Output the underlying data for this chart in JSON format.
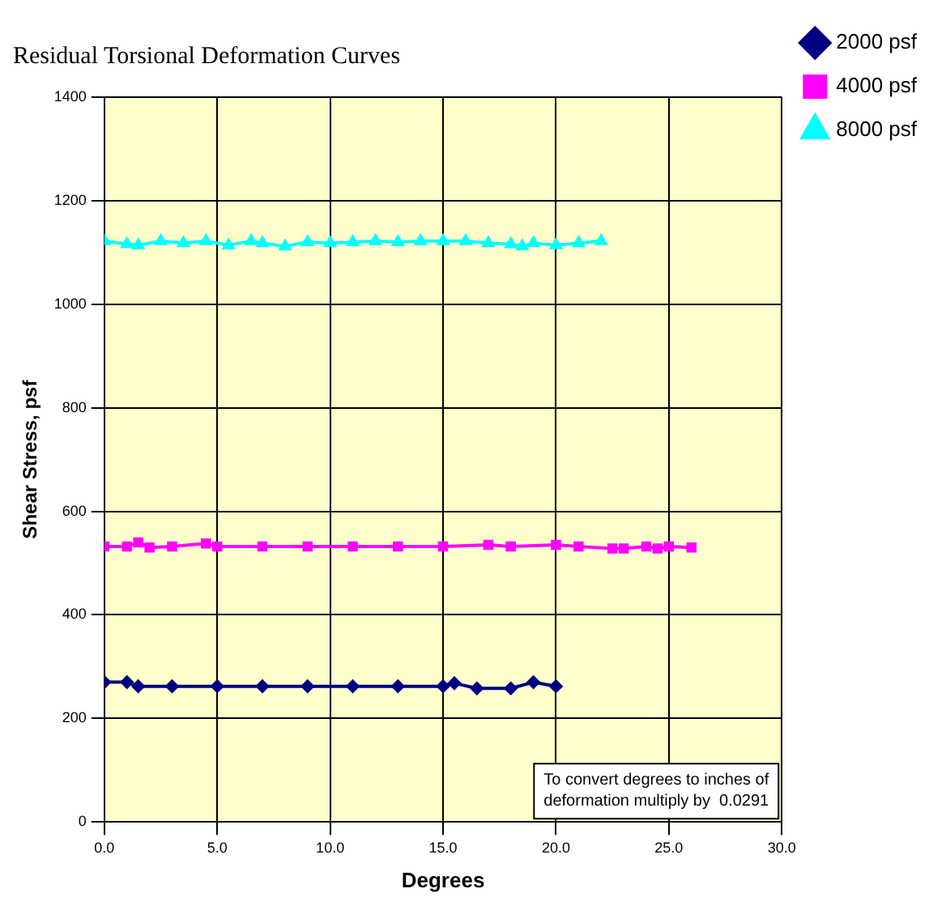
{
  "chart_data": {
    "type": "line",
    "title": "Residual Torsional Deformation Curves",
    "xlabel": "Degrees",
    "ylabel": "Shear Stress, psf",
    "xlim": [
      0,
      30
    ],
    "xticks": [
      {
        "value": 0,
        "label": "0.0"
      },
      {
        "value": 5,
        "label": "5.0"
      },
      {
        "value": 10,
        "label": "10.0"
      },
      {
        "value": 15,
        "label": "15.0"
      },
      {
        "value": 20,
        "label": "20.0"
      },
      {
        "value": 25,
        "label": "25.0"
      },
      {
        "value": 30,
        "label": "30.0"
      }
    ],
    "ylim": [
      0,
      1400
    ],
    "yticks": [
      0,
      200,
      400,
      600,
      800,
      1000,
      1200,
      1400
    ],
    "grid": true,
    "legend": "top right",
    "annotations": [
      "To convert degrees to inches of deformation multiply by  0.0291"
    ],
    "series": [
      {
        "name": "2000 psf",
        "color": "#000080",
        "marker": "diamond",
        "x": [
          0,
          1,
          1.5,
          3,
          5,
          7,
          9,
          11,
          13,
          15,
          15.5,
          16.5,
          18,
          19,
          20
        ],
        "values": [
          270,
          270,
          262,
          262,
          262,
          262,
          262,
          262,
          262,
          262,
          268,
          258,
          258,
          270,
          262
        ]
      },
      {
        "name": "4000 psf",
        "color": "#ff00ff",
        "marker": "square",
        "x": [
          0,
          1,
          1.5,
          2,
          3,
          4.5,
          5,
          7,
          9,
          11,
          13,
          15,
          17,
          18,
          20,
          21,
          22.5,
          23,
          24,
          24.5,
          25,
          26
        ],
        "values": [
          532,
          532,
          540,
          530,
          532,
          538,
          532,
          532,
          532,
          532,
          532,
          532,
          535,
          532,
          535,
          532,
          528,
          528,
          532,
          528,
          532,
          530
        ]
      },
      {
        "name": "8000 psf",
        "color": "#00ffff",
        "marker": "triangle",
        "x": [
          0,
          1,
          1.5,
          2.5,
          3.5,
          4.5,
          5.5,
          6.5,
          7,
          8,
          9,
          10,
          11,
          12,
          13,
          14,
          15,
          16,
          17,
          18,
          18.5,
          19,
          20,
          21,
          22
        ],
        "values": [
          1122,
          1116,
          1114,
          1122,
          1118,
          1122,
          1114,
          1122,
          1118,
          1112,
          1120,
          1118,
          1120,
          1122,
          1120,
          1122,
          1122,
          1122,
          1118,
          1116,
          1112,
          1118,
          1114,
          1118,
          1122
        ]
      }
    ]
  }
}
